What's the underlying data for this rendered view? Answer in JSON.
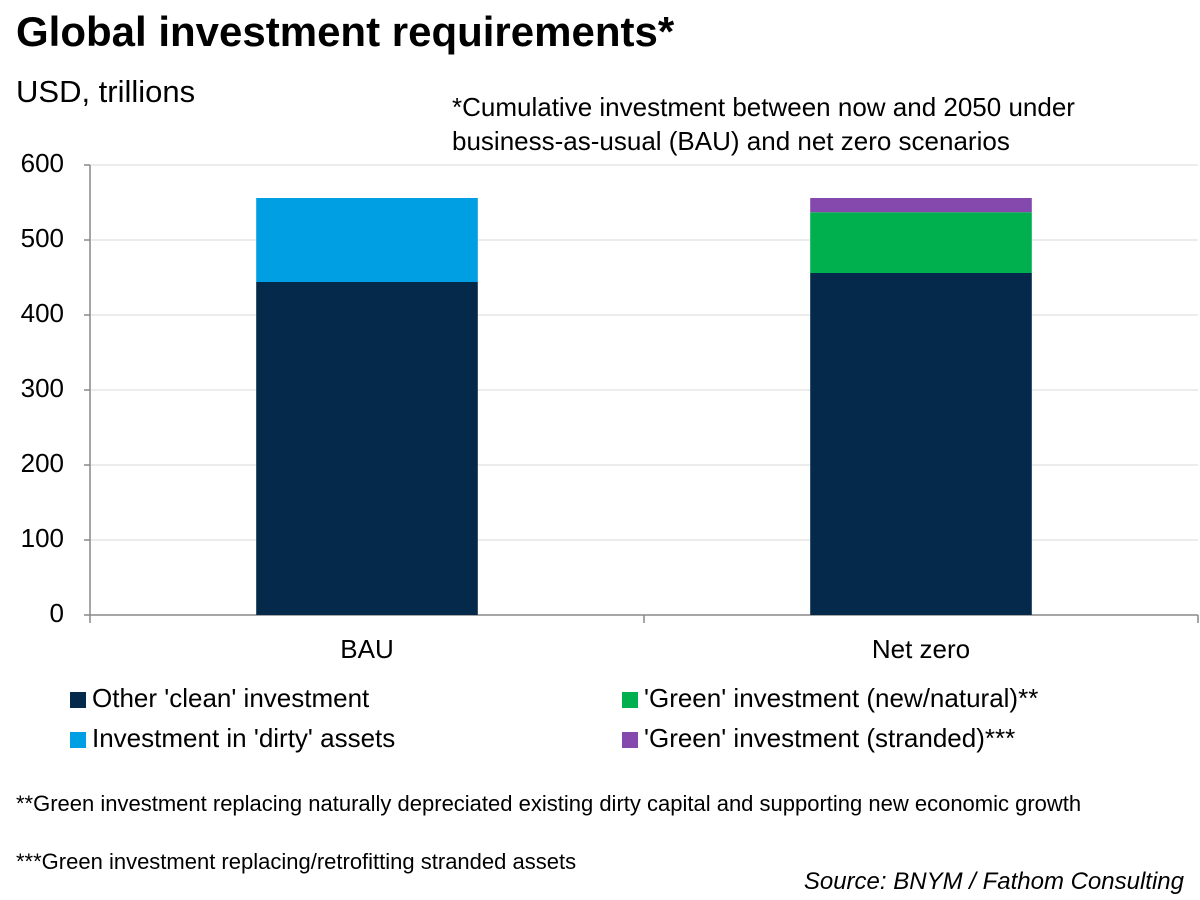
{
  "chart_data": {
    "type": "stacked_bar",
    "title": "Global investment requirements*",
    "subtitle": "USD, trillions",
    "note": "*Cumulative investment between now and 2050 under business-as-usual (BAU) and net zero scenarios",
    "categories": [
      "BAU",
      "Net zero"
    ],
    "series": [
      {
        "name": "Other 'clean' investment",
        "color": "#05294a",
        "values": [
          444,
          456
        ]
      },
      {
        "name": "Investment in 'dirty' assets",
        "color": "#009fe3",
        "values": [
          112,
          null
        ]
      },
      {
        "name": "'Green' investment (new/natural)**",
        "color": "#00b04f",
        "values": [
          null,
          81
        ]
      },
      {
        "name": "'Green' investment (stranded)***",
        "color": "#8549ad",
        "values": [
          null,
          19
        ]
      }
    ],
    "ylim": [
      0,
      600
    ],
    "yticks": [
      0,
      100,
      200,
      300,
      400,
      500,
      600
    ],
    "grid": true,
    "footnotes": [
      "**Green investment replacing naturally depreciated existing dirty capital and supporting new economic growth",
      "***Green investment replacing/retrofitting stranded assets"
    ],
    "source": "Source: BNYM / Fathom Consulting"
  }
}
